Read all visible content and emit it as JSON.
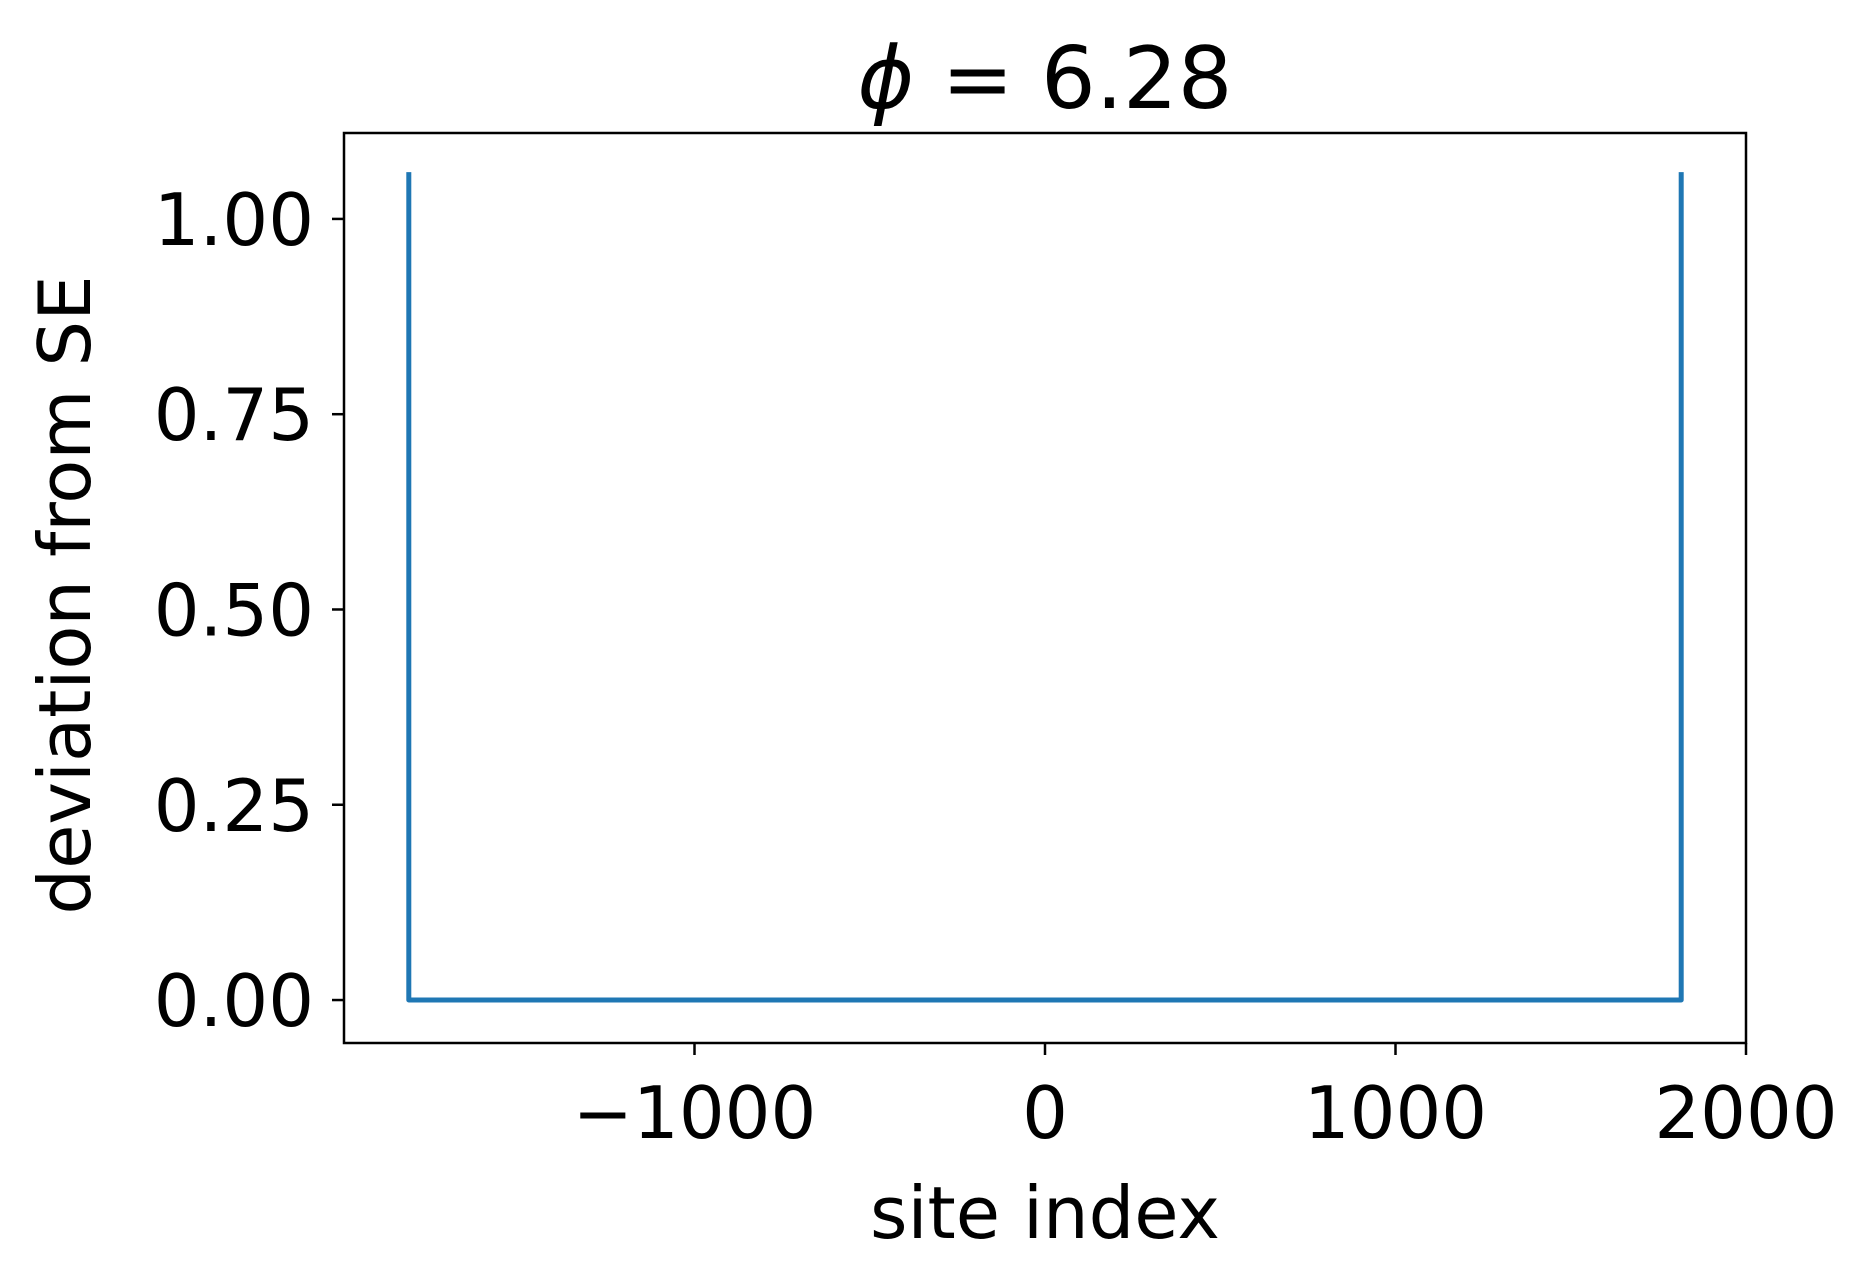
{
  "chart_data": {
    "type": "line",
    "title_symbol": "ϕ",
    "title_value": " = 6.28",
    "xlabel": "site index",
    "ylabel": "deviation from SE",
    "xlim": [
      -2000,
      2000
    ],
    "ylim": [
      -0.055,
      1.11
    ],
    "xticks": [
      -1000,
      0,
      1000,
      2000
    ],
    "xtick_labels": [
      "−1000",
      "0",
      "1000",
      "2000"
    ],
    "yticks": [
      0.0,
      0.25,
      0.5,
      0.75,
      1.0
    ],
    "ytick_labels": [
      "0.00",
      "0.25",
      "0.50",
      "0.75",
      "1.00"
    ],
    "grid": false,
    "series": [
      {
        "name": "deviation",
        "color": "#1f77b4",
        "x": [
          -1815,
          -1815,
          -1812,
          1812,
          1815,
          1815
        ],
        "y": [
          1.06,
          0.0,
          0.0,
          0.0,
          0.0,
          1.06
        ]
      }
    ]
  }
}
